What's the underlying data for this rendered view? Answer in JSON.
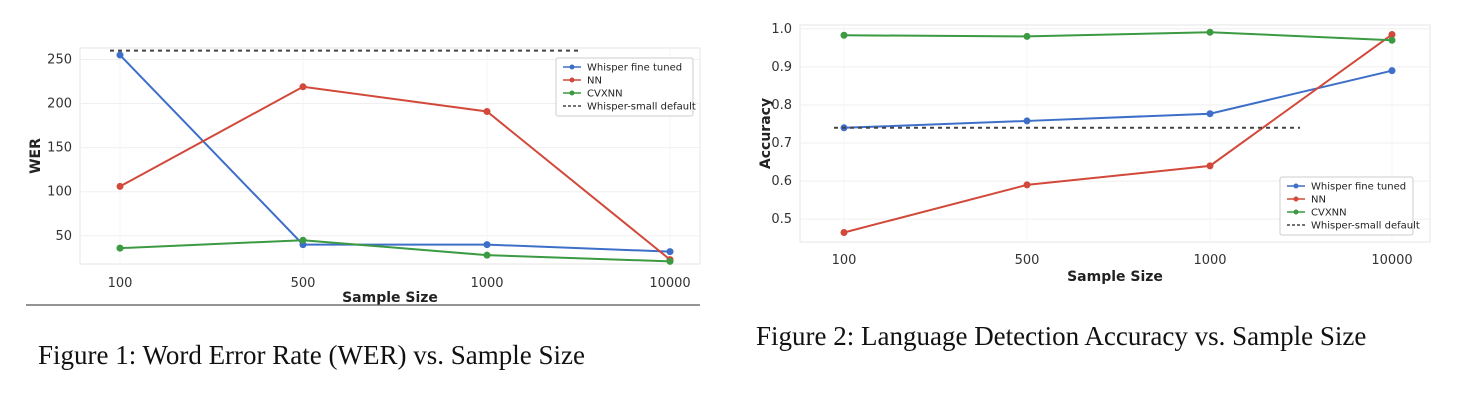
{
  "chart_data": [
    {
      "type": "line",
      "x": [
        "100",
        "500",
        "1000",
        "10000"
      ],
      "xlabel": "Sample Size",
      "ylabel": "WER",
      "yticks": [
        50,
        100,
        150,
        200,
        250
      ],
      "ylim": [
        18,
        263
      ],
      "grid": true,
      "legend_position": "top-right",
      "series": [
        {
          "name": "Whisper fine tuned",
          "color": "#3d6fc9",
          "style": "solid",
          "values": [
            255,
            40,
            40,
            32
          ]
        },
        {
          "name": "NN",
          "color": "#d2483a",
          "style": "solid",
          "values": [
            106,
            219,
            191,
            23
          ]
        },
        {
          "name": "CVXNN",
          "color": "#3b9a42",
          "style": "solid",
          "values": [
            36,
            45,
            28,
            21
          ]
        },
        {
          "name": "Whisper-small default",
          "color": "#444444",
          "style": "dashed",
          "values": [
            260,
            260,
            260,
            260
          ]
        }
      ],
      "caption": "Figure 1: Word Error Rate (WER) vs. Sample Size"
    },
    {
      "type": "line",
      "x": [
        "100",
        "500",
        "1000",
        "10000"
      ],
      "xlabel": "Sample Size",
      "ylabel": "Accuracy",
      "yticks": [
        0.5,
        0.6,
        0.7,
        0.8,
        0.9,
        1.0
      ],
      "ytick_labels": [
        "0.5",
        "0.6",
        "0.7",
        "0.8",
        "0.9",
        "1.0"
      ],
      "ylim": [
        0.44,
        1.01
      ],
      "grid": true,
      "legend_position": "bottom-right",
      "series": [
        {
          "name": "Whisper fine tuned",
          "color": "#3d6fc9",
          "style": "solid",
          "values": [
            0.74,
            0.758,
            0.777,
            0.89
          ]
        },
        {
          "name": "NN",
          "color": "#d2483a",
          "style": "solid",
          "values": [
            0.465,
            0.59,
            0.64,
            0.985
          ]
        },
        {
          "name": "CVXNN",
          "color": "#3b9a42",
          "style": "solid",
          "values": [
            0.983,
            0.98,
            0.991,
            0.97
          ]
        },
        {
          "name": "Whisper-small default",
          "color": "#444444",
          "style": "dashed",
          "values": [
            0.74,
            0.74,
            0.74,
            0.74
          ]
        }
      ],
      "caption": "Figure 2: Language Detection Accuracy vs. Sample Size"
    }
  ]
}
